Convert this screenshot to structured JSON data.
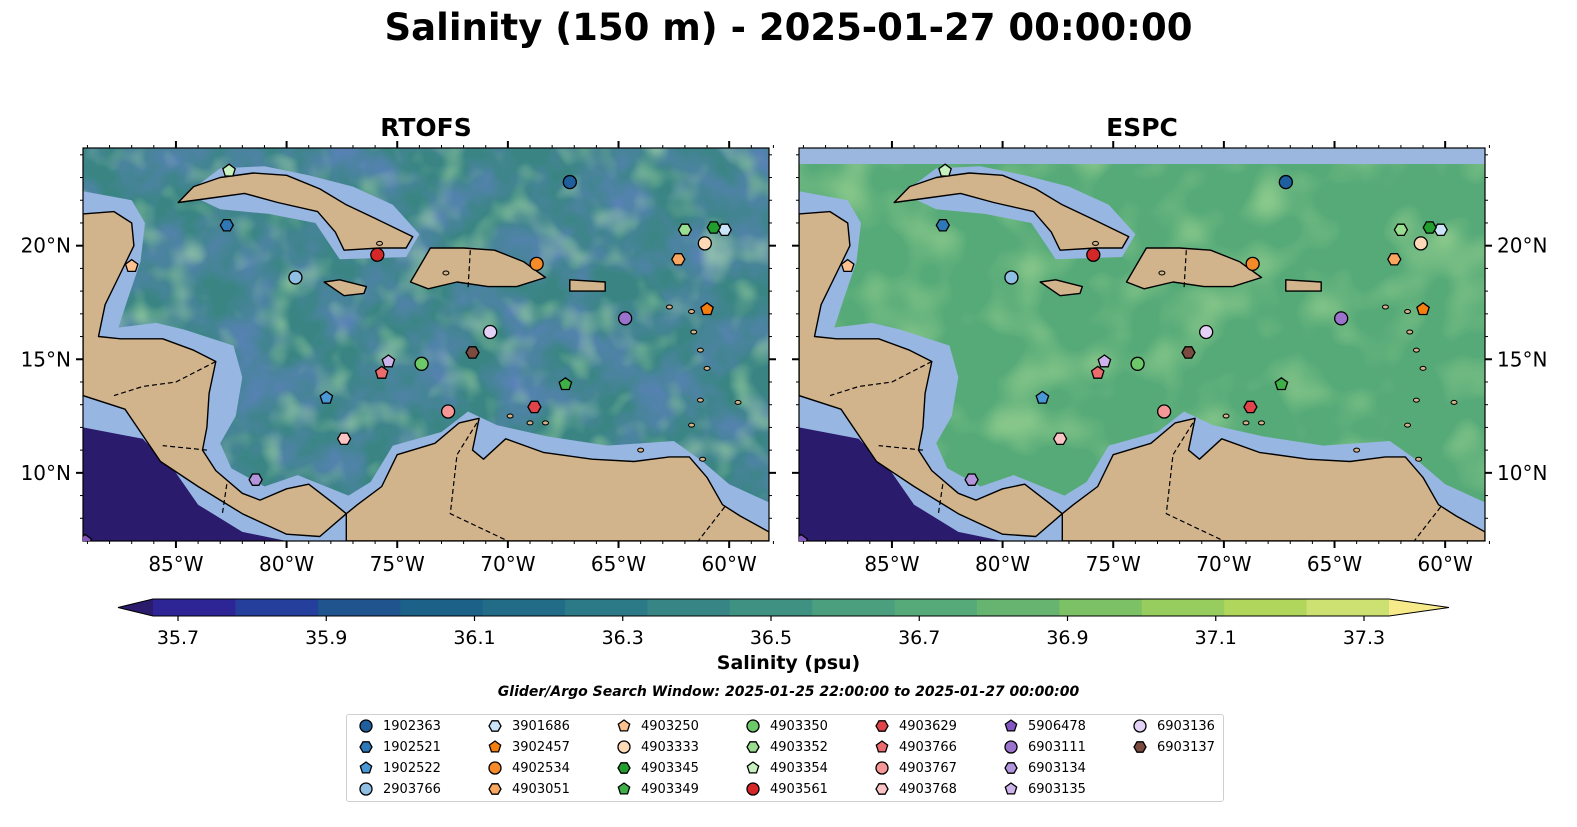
{
  "title": "Salinity (150 m) - 2025-01-27 00:00:00",
  "panels": [
    {
      "title": "RTOFS"
    },
    {
      "title": "ESPC"
    }
  ],
  "lon_ticks": [
    "85°W",
    "80°W",
    "75°W",
    "70°W",
    "65°W",
    "60°W"
  ],
  "lat_ticks": [
    "20°N",
    "15°N",
    "10°N"
  ],
  "colorbar": {
    "label": "Salinity (psu)",
    "ticks": [
      "35.7",
      "35.9",
      "36.1",
      "36.3",
      "36.5",
      "36.7",
      "36.9",
      "37.1",
      "37.3"
    ],
    "colors": [
      "#2a1b6c",
      "#2d2596",
      "#243f9c",
      "#1f548f",
      "#1c6188",
      "#226c88",
      "#2c7a88",
      "#378585",
      "#3f9182",
      "#4b9e7e",
      "#56a978",
      "#66b46f",
      "#7dc166",
      "#97cc5e",
      "#b1d65c",
      "#cde072",
      "#f7ea8b"
    ]
  },
  "search_window": "Glider/Argo Search Window: 2025-01-25 22:00:00 to 2025-01-27 00:00:00",
  "legend": [
    {
      "id": "1902363",
      "marker": "circle",
      "color": "#1f5f9e"
    },
    {
      "id": "1902521",
      "marker": "hexagon",
      "color": "#2e78b8"
    },
    {
      "id": "1902522",
      "marker": "pentagon",
      "color": "#4a97d6"
    },
    {
      "id": "2903766",
      "marker": "circle",
      "color": "#8fbfe3"
    },
    {
      "id": "3901686",
      "marker": "hexagon",
      "color": "#cbe4f7"
    },
    {
      "id": "3902457",
      "marker": "pentagon",
      "color": "#f57f0e"
    },
    {
      "id": "4902534",
      "marker": "circle",
      "color": "#f58a28"
    },
    {
      "id": "4903051",
      "marker": "hexagon",
      "color": "#f9a760"
    },
    {
      "id": "4903250",
      "marker": "pentagon",
      "color": "#fcc18f"
    },
    {
      "id": "4903333",
      "marker": "circle",
      "color": "#fdd9b8"
    },
    {
      "id": "4903345",
      "marker": "hexagon",
      "color": "#229e2e"
    },
    {
      "id": "4903349",
      "marker": "pentagon",
      "color": "#3fb048"
    },
    {
      "id": "4903350",
      "marker": "circle",
      "color": "#6cc868"
    },
    {
      "id": "4903352",
      "marker": "hexagon",
      "color": "#98dd90"
    },
    {
      "id": "4903354",
      "marker": "pentagon",
      "color": "#c7f2bf"
    },
    {
      "id": "4903561",
      "marker": "circle",
      "color": "#d62728"
    },
    {
      "id": "4903629",
      "marker": "hexagon",
      "color": "#e04448"
    },
    {
      "id": "4903766",
      "marker": "pentagon",
      "color": "#ec6c6e"
    },
    {
      "id": "4903767",
      "marker": "circle",
      "color": "#f59697"
    },
    {
      "id": "4903768",
      "marker": "hexagon",
      "color": "#fbc4c4"
    },
    {
      "id": "5906478",
      "marker": "pentagon",
      "color": "#8456c2"
    },
    {
      "id": "6903111",
      "marker": "circle",
      "color": "#9a73cc"
    },
    {
      "id": "6903134",
      "marker": "hexagon",
      "color": "#b395dc"
    },
    {
      "id": "6903135",
      "marker": "pentagon",
      "color": "#ccb3eb"
    },
    {
      "id": "6903136",
      "marker": "circle",
      "color": "#e3d2f5"
    },
    {
      "id": "6903137",
      "marker": "hexagon",
      "color": "#7a4b3e"
    }
  ],
  "floats": [
    {
      "id": "1902363",
      "lon": -67.2,
      "lat": 22.8
    },
    {
      "id": "1902521",
      "lon": -82.7,
      "lat": 20.9
    },
    {
      "id": "1902522",
      "lon": -78.2,
      "lat": 13.3
    },
    {
      "id": "2903766",
      "lon": -79.6,
      "lat": 18.6
    },
    {
      "id": "3901686",
      "lon": -60.2,
      "lat": 20.7
    },
    {
      "id": "3902457",
      "lon": -61.0,
      "lat": 17.2
    },
    {
      "id": "4902534",
      "lon": -68.7,
      "lat": 19.2
    },
    {
      "id": "4903051",
      "lon": -62.3,
      "lat": 19.4
    },
    {
      "id": "4903250",
      "lon": -87.0,
      "lat": 19.1
    },
    {
      "id": "4903333",
      "lon": -61.1,
      "lat": 20.1
    },
    {
      "id": "4903345",
      "lon": -60.7,
      "lat": 20.8
    },
    {
      "id": "4903349",
      "lon": -67.4,
      "lat": 13.9
    },
    {
      "id": "4903350",
      "lon": -73.9,
      "lat": 14.8
    },
    {
      "id": "4903352",
      "lon": -62.0,
      "lat": 20.7
    },
    {
      "id": "4903354",
      "lon": -82.6,
      "lat": 23.3
    },
    {
      "id": "4903561",
      "lon": -75.9,
      "lat": 19.6
    },
    {
      "id": "4903629",
      "lon": -68.8,
      "lat": 12.9
    },
    {
      "id": "4903766",
      "lon": -75.7,
      "lat": 14.4
    },
    {
      "id": "4903767",
      "lon": -72.7,
      "lat": 12.7
    },
    {
      "id": "4903768",
      "lon": -77.4,
      "lat": 11.5
    },
    {
      "id": "5906478",
      "lon": -89.1,
      "lat": 7.0
    },
    {
      "id": "6903111",
      "lon": -64.7,
      "lat": 16.8
    },
    {
      "id": "6903134",
      "lon": -81.4,
      "lat": 9.7
    },
    {
      "id": "6903135",
      "lon": -75.4,
      "lat": 14.9
    },
    {
      "id": "6903136",
      "lon": -70.8,
      "lat": 16.2
    },
    {
      "id": "6903137",
      "lon": -71.6,
      "lat": 15.3
    }
  ]
}
